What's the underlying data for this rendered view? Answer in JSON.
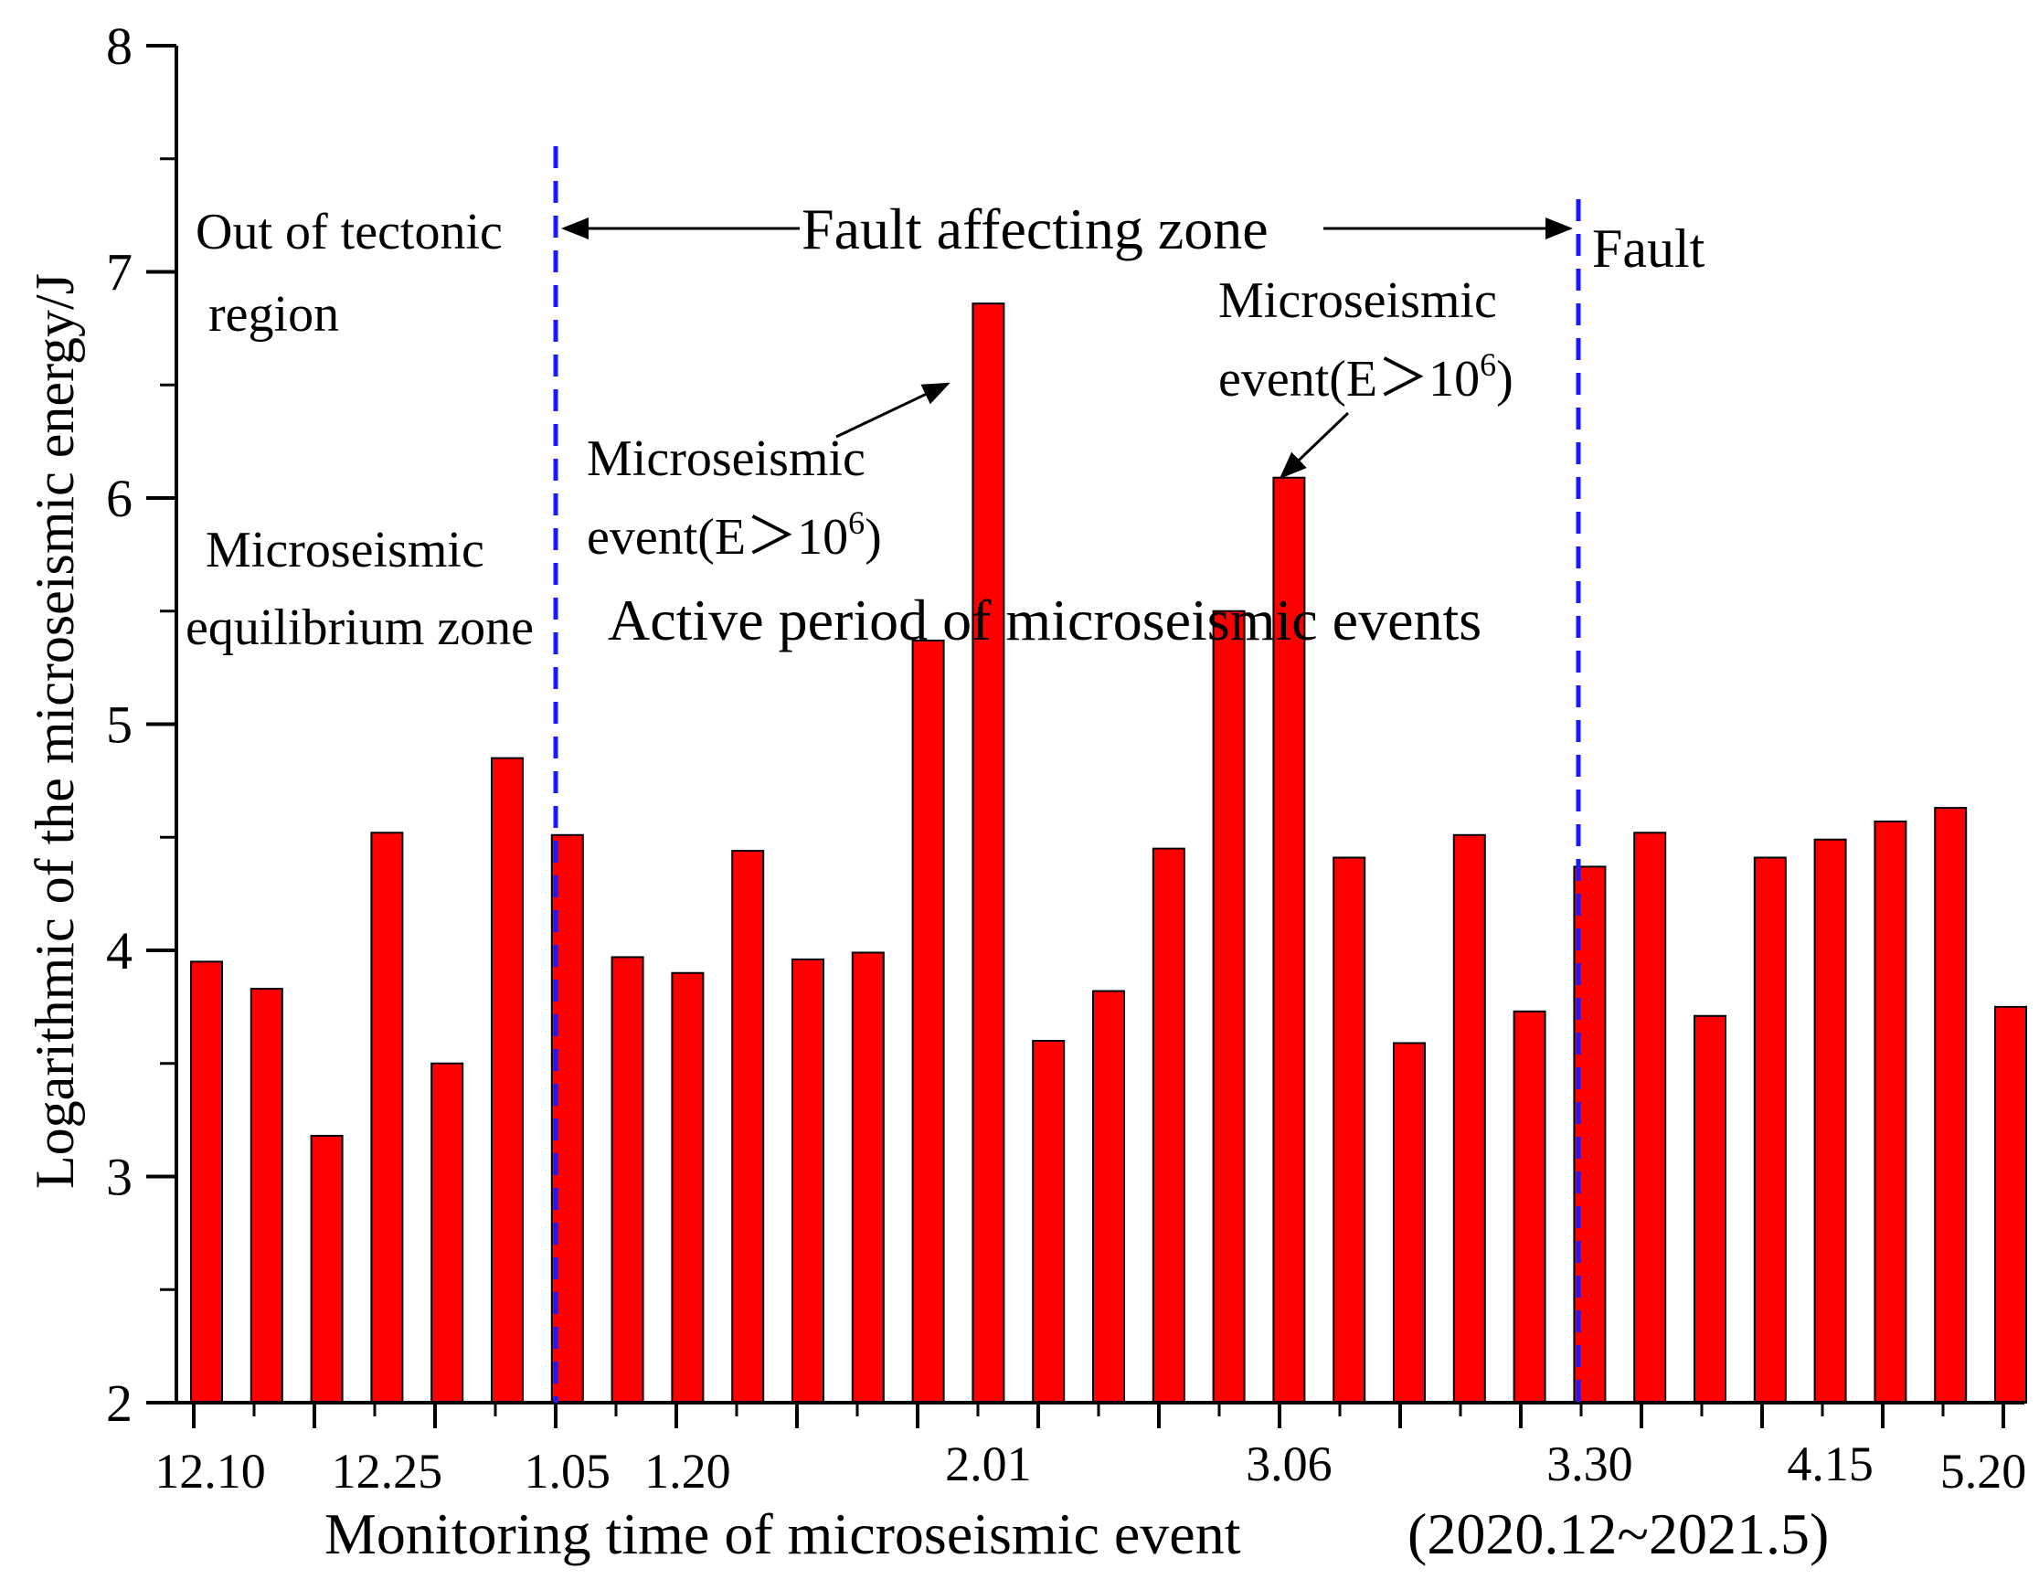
{
  "chart_data": {
    "type": "bar",
    "xlabel": "Monitoring time of microseismic event",
    "xlabel_range": "(2020.12~2021.5)",
    "ylabel": "Logarithmic of the microseismic energy/J",
    "ylim": [
      2,
      8
    ],
    "yticks": [
      2,
      3,
      4,
      5,
      6,
      7,
      8
    ],
    "grid": false,
    "bar_color": "#ff0000",
    "values": [
      3.95,
      3.83,
      3.18,
      4.52,
      3.5,
      4.85,
      4.51,
      3.97,
      3.9,
      4.44,
      3.96,
      3.99,
      5.37,
      6.86,
      3.6,
      3.82,
      4.45,
      5.5,
      6.09,
      4.41,
      3.59,
      4.51,
      3.73,
      4.37,
      4.52,
      3.71,
      4.41,
      4.49,
      4.57,
      4.63,
      3.75
    ],
    "xtick_labels": [
      {
        "label": "12.10",
        "index": 0
      },
      {
        "label": "12.25",
        "index": 3
      },
      {
        "label": "1.05",
        "index": 6
      },
      {
        "label": "1.20",
        "index": 8
      },
      {
        "label": "2.01",
        "index": 13
      },
      {
        "label": "3.06",
        "index": 18
      },
      {
        "label": "3.30",
        "index": 23
      },
      {
        "label": "4.15",
        "index": 27
      },
      {
        "label": "5.20",
        "index": 30
      }
    ],
    "divider_color": "#1a1aff",
    "annotations": {
      "out_region_line1": "Out of tectonic",
      "out_region_line2": "region",
      "fault_zone": "Fault affecting zone",
      "fault": "Fault",
      "equilibrium_line1": "Microseismic",
      "equilibrium_line2": "equilibrium zone",
      "active_period": "Active period of microseismic events",
      "event1_line1": "Microseismic",
      "event1_line2_prefix": "event(E＞10",
      "event1_sup": "6",
      "event1_suffix": ")",
      "event2_line1": "Microseismic",
      "event2_line2_prefix": "event(E＞10",
      "event2_sup": "6",
      "event2_suffix": ")"
    }
  }
}
